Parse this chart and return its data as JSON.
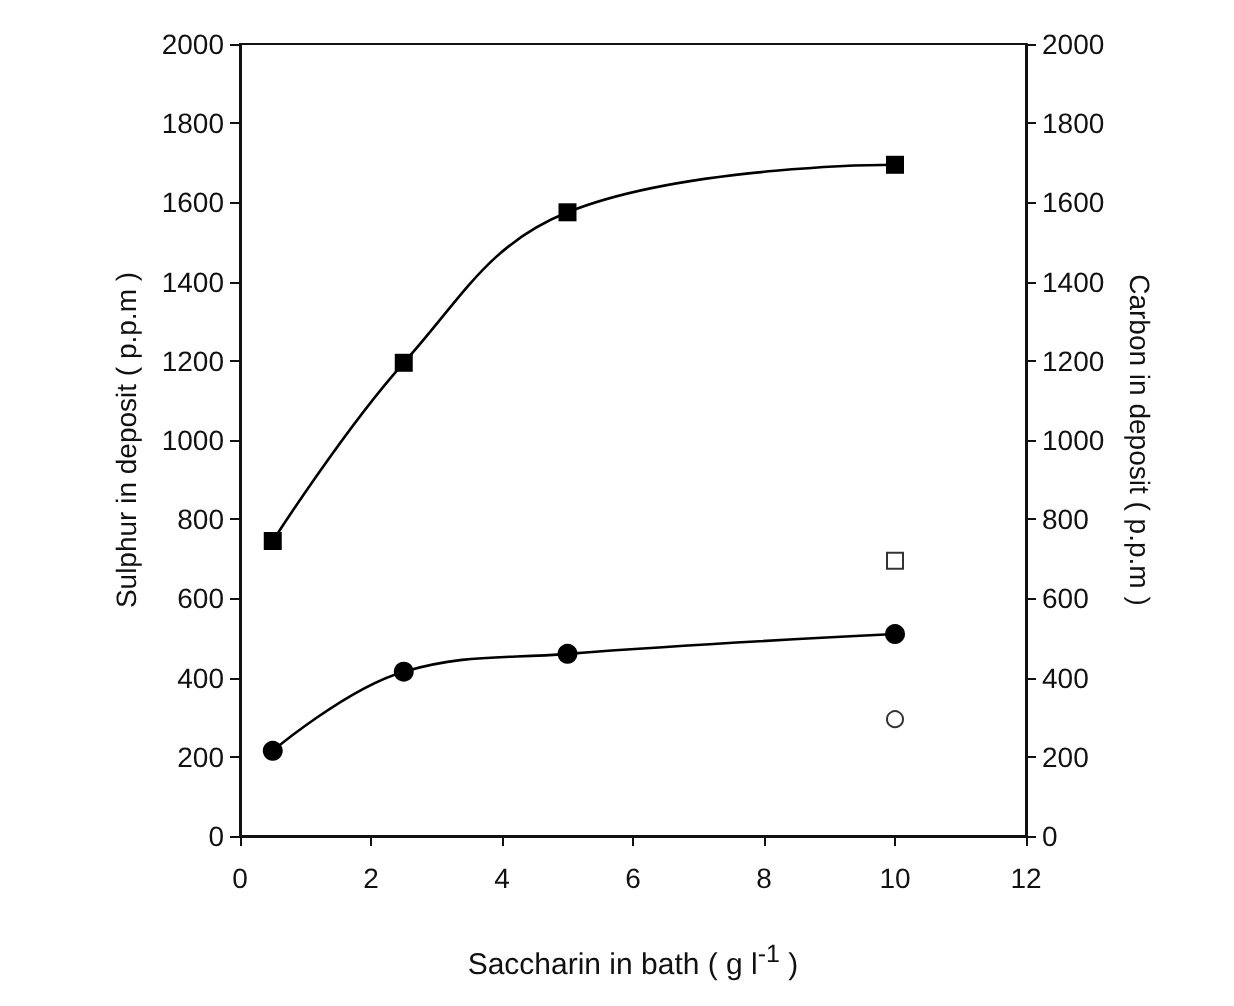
{
  "chart_data": {
    "type": "line",
    "xlabel": "Saccharin in bath ( g l$^{-1}$ )",
    "ylabel": "Sulphur in deposit ( p.p.m )",
    "y2label": "Carbon in deposit ( p.p.m )",
    "xlim": [
      0,
      12
    ],
    "xticks": [
      0,
      2,
      4,
      6,
      8,
      10,
      12
    ],
    "ylim": [
      0,
      2000
    ],
    "yticks": [
      0,
      200,
      400,
      600,
      800,
      1000,
      1200,
      1400,
      1600,
      1800,
      2000
    ],
    "y2lim": [
      0,
      2000
    ],
    "y2ticks": [
      0,
      200,
      400,
      600,
      800,
      1000,
      1200,
      1400,
      1600,
      1800,
      2000
    ],
    "grid": false,
    "series": [
      {
        "marker": "square",
        "color": "#000000",
        "x": [
          0.5,
          2.5,
          5,
          10
        ],
        "values": [
          745,
          1195,
          1575,
          1695
        ]
      },
      {
        "marker": "circle",
        "color": "#000000",
        "x": [
          0.5,
          2.5,
          5,
          10
        ],
        "values": [
          215,
          415,
          460,
          510
        ]
      },
      {
        "type": "scatter",
        "marker": "square",
        "color": "#000000",
        "x": [
          10
        ],
        "values": [
          695
        ]
      },
      {
        "type": "scatter",
        "marker": "circle",
        "color": "#000000",
        "x": [
          10
        ],
        "values": [
          295
        ]
      }
    ]
  }
}
